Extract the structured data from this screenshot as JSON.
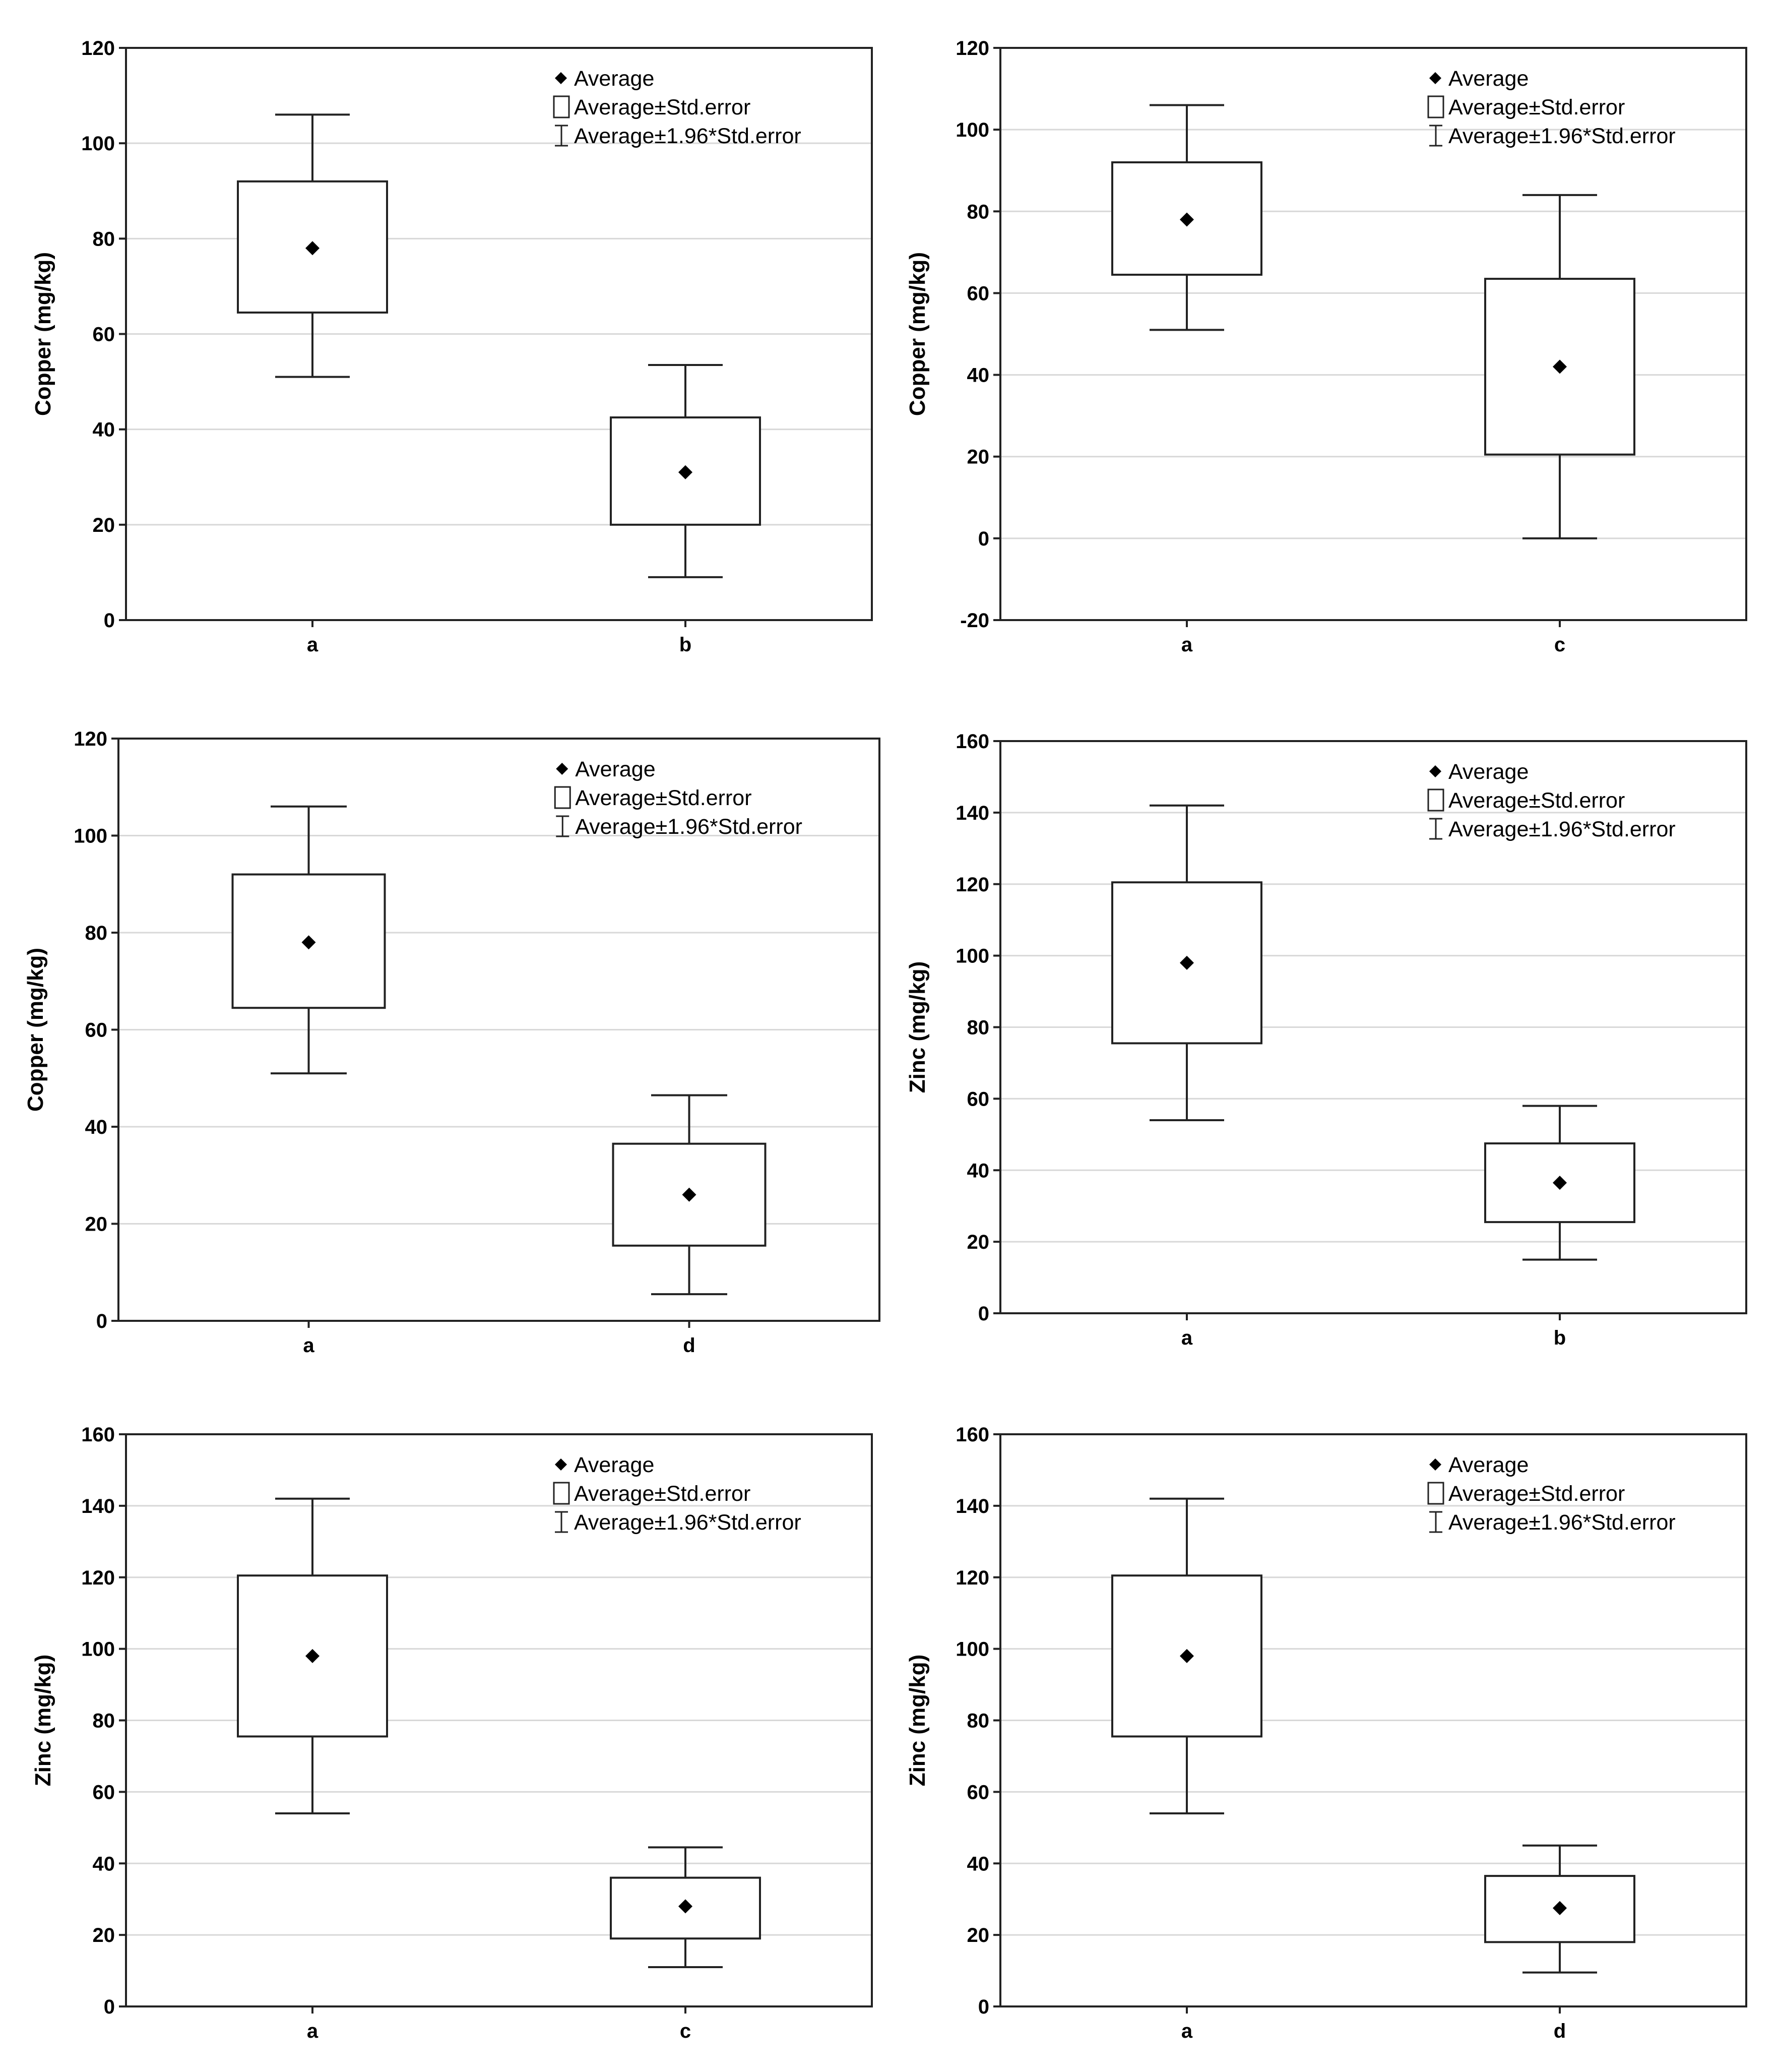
{
  "legend": {
    "average": "Average",
    "std_error": "Average±Std.error",
    "ci": "Average±1.96*Std.error"
  },
  "colors": {
    "axis": "#222222",
    "grid": "#d8d8d8",
    "marker": "#000000"
  },
  "chart_data": [
    {
      "type": "box",
      "title": "",
      "ylabel": "Copper (mg/kg)",
      "xlabel": "",
      "ylim": [
        0,
        120
      ],
      "yticks": [
        0,
        20,
        40,
        60,
        80,
        100,
        120
      ],
      "grid": true,
      "legend_position": "top-right",
      "categories": [
        "a",
        "b"
      ],
      "boxes": [
        {
          "category": "a",
          "mean": 78,
          "se_low": 64.5,
          "se_high": 92,
          "ci_low": 51,
          "ci_high": 106
        },
        {
          "category": "b",
          "mean": 31,
          "se_low": 20,
          "se_high": 42.5,
          "ci_low": 9,
          "ci_high": 53.5
        }
      ]
    },
    {
      "type": "box",
      "title": "",
      "ylabel": "Copper (mg/kg)",
      "xlabel": "",
      "ylim": [
        -20,
        120
      ],
      "yticks": [
        -20,
        0,
        20,
        40,
        60,
        80,
        100,
        120
      ],
      "grid": true,
      "legend_position": "top-right",
      "categories": [
        "a",
        "c"
      ],
      "boxes": [
        {
          "category": "a",
          "mean": 78,
          "se_low": 64.5,
          "se_high": 92,
          "ci_low": 51,
          "ci_high": 106
        },
        {
          "category": "c",
          "mean": 42,
          "se_low": 20.5,
          "se_high": 63.5,
          "ci_low": 0,
          "ci_high": 84
        }
      ]
    },
    {
      "type": "box",
      "title": "",
      "ylabel": "Copper (mg/kg)",
      "xlabel": "",
      "ylim": [
        0,
        120
      ],
      "yticks": [
        0,
        20,
        40,
        60,
        80,
        100,
        120
      ],
      "grid": true,
      "legend_position": "top-right",
      "categories": [
        "a",
        "d"
      ],
      "boxes": [
        {
          "category": "a",
          "mean": 78,
          "se_low": 64.5,
          "se_high": 92,
          "ci_low": 51,
          "ci_high": 106
        },
        {
          "category": "d",
          "mean": 26,
          "se_low": 15.5,
          "se_high": 36.5,
          "ci_low": 5.5,
          "ci_high": 46.5
        }
      ]
    },
    {
      "type": "box",
      "title": "",
      "ylabel": "Zinc (mg/kg)",
      "xlabel": "",
      "ylim": [
        0,
        160
      ],
      "yticks": [
        0,
        20,
        40,
        60,
        80,
        100,
        120,
        140,
        160
      ],
      "grid": true,
      "legend_position": "top-right",
      "categories": [
        "a",
        "b"
      ],
      "boxes": [
        {
          "category": "a",
          "mean": 98,
          "se_low": 75.5,
          "se_high": 120.5,
          "ci_low": 54,
          "ci_high": 142
        },
        {
          "category": "b",
          "mean": 36.5,
          "se_low": 25.5,
          "se_high": 47.5,
          "ci_low": 15,
          "ci_high": 58
        }
      ]
    },
    {
      "type": "box",
      "title": "",
      "ylabel": "Zinc (mg/kg)",
      "xlabel": "",
      "ylim": [
        0,
        160
      ],
      "yticks": [
        0,
        20,
        40,
        60,
        80,
        100,
        120,
        140,
        160
      ],
      "grid": true,
      "legend_position": "top-right",
      "categories": [
        "a",
        "c"
      ],
      "boxes": [
        {
          "category": "a",
          "mean": 98,
          "se_low": 75.5,
          "se_high": 120.5,
          "ci_low": 54,
          "ci_high": 142
        },
        {
          "category": "c",
          "mean": 28,
          "se_low": 19,
          "se_high": 36,
          "ci_low": 11,
          "ci_high": 44.5
        }
      ]
    },
    {
      "type": "box",
      "title": "",
      "ylabel": "Zinc (mg/kg)",
      "xlabel": "",
      "ylim": [
        0,
        160
      ],
      "yticks": [
        0,
        20,
        40,
        60,
        80,
        100,
        120,
        140,
        160
      ],
      "grid": true,
      "legend_position": "top-right",
      "categories": [
        "a",
        "d"
      ],
      "boxes": [
        {
          "category": "a",
          "mean": 98,
          "se_low": 75.5,
          "se_high": 120.5,
          "ci_low": 54,
          "ci_high": 142
        },
        {
          "category": "d",
          "mean": 27.5,
          "se_low": 18,
          "se_high": 36.5,
          "ci_low": 9.5,
          "ci_high": 45
        }
      ]
    }
  ]
}
